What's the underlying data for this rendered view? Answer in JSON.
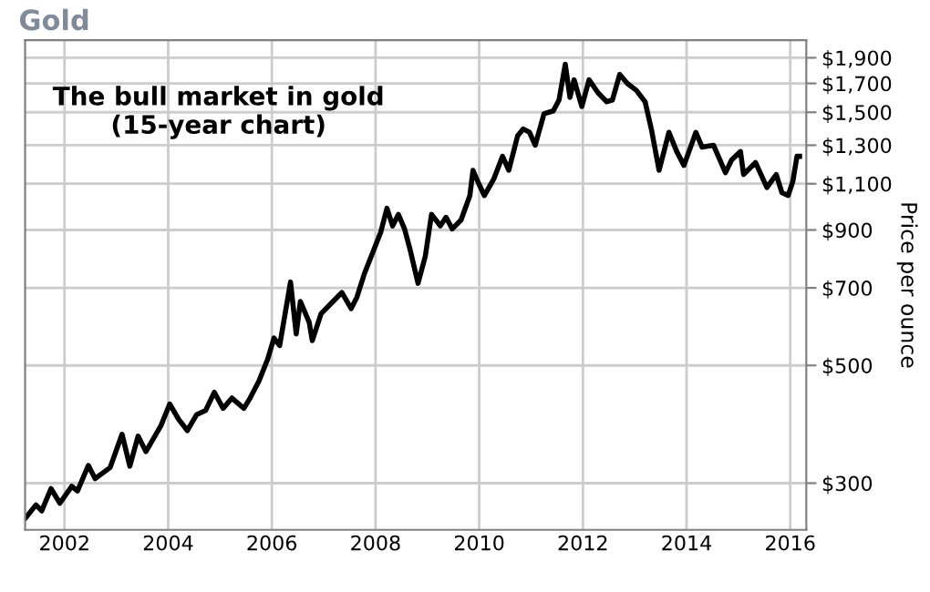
{
  "chart_data": {
    "type": "line",
    "title": "Gold",
    "ylabel": "Price per ounce",
    "annotations": [
      "The bull market in gold\n(15-year chart)"
    ],
    "x": [
      2001.25,
      2001.45,
      2001.56,
      2001.74,
      2001.91,
      2002.14,
      2002.25,
      2002.46,
      2002.59,
      2002.88,
      2003.11,
      2003.26,
      2003.42,
      2003.57,
      2003.86,
      2004.03,
      2004.2,
      2004.37,
      2004.55,
      2004.72,
      2004.89,
      2005.06,
      2005.23,
      2005.46,
      2005.58,
      2005.75,
      2005.92,
      2006.04,
      2006.15,
      2006.36,
      2006.47,
      2006.55,
      2006.72,
      2006.78,
      2006.95,
      2007.18,
      2007.35,
      2007.53,
      2007.64,
      2007.78,
      2008.1,
      2008.22,
      2008.33,
      2008.44,
      2008.56,
      2008.67,
      2008.82,
      2008.96,
      2009.08,
      2009.25,
      2009.36,
      2009.48,
      2009.65,
      2009.82,
      2009.88,
      2009.99,
      2010.1,
      2010.28,
      2010.45,
      2010.57,
      2010.74,
      2010.85,
      2010.97,
      2011.08,
      2011.25,
      2011.43,
      2011.54,
      2011.66,
      2011.75,
      2011.83,
      2011.98,
      2012.12,
      2012.29,
      2012.46,
      2012.57,
      2012.71,
      2012.86,
      2013.03,
      2013.2,
      2013.32,
      2013.47,
      2013.66,
      2013.81,
      2013.95,
      2014.18,
      2014.3,
      2014.52,
      2014.75,
      2014.87,
      2015.04,
      2015.1,
      2015.33,
      2015.55,
      2015.73,
      2015.84,
      2015.96,
      2016.05,
      2016.13,
      2016.18
    ],
    "series": [
      {
        "color": "#000000",
        "values": [
          258,
          273,
          266,
          293,
          275,
          296,
          290,
          324,
          306,
          321,
          371,
          323,
          368,
          344,
          385,
          423,
          396,
          377,
          404,
          411,
          445,
          415,
          434,
          415,
          434,
          467,
          514,
          563,
          545,
          718,
          573,
          660,
          603,
          557,
          626,
          660,
          686,
          640,
          672,
          742,
          891,
          989,
          916,
          963,
          904,
          824,
          714,
          803,
          963,
          916,
          951,
          904,
          940,
          1045,
          1166,
          1101,
          1045,
          1122,
          1239,
          1166,
          1353,
          1395,
          1375,
          1300,
          1490,
          1509,
          1582,
          1848,
          1600,
          1727,
          1538,
          1727,
          1633,
          1570,
          1582,
          1767,
          1699,
          1650,
          1570,
          1395,
          1166,
          1375,
          1265,
          1191,
          1375,
          1289,
          1300,
          1154,
          1220,
          1265,
          1145,
          1206,
          1082,
          1145,
          1058,
          1045,
          1111,
          1239,
          1239
        ]
      }
    ],
    "log": "y",
    "xlim": [
      2001.24,
      2016.31
    ],
    "ylim": [
      245,
      2050
    ],
    "xticks": [
      2002,
      2004,
      2006,
      2008,
      2010,
      2012,
      2014,
      2016
    ],
    "yticks": [
      {
        "value": 300,
        "label": "$300"
      },
      {
        "value": 500,
        "label": "$500"
      },
      {
        "value": 700,
        "label": "$700"
      },
      {
        "value": 900,
        "label": "$900"
      },
      {
        "value": 1100,
        "label": "$1,100"
      },
      {
        "value": 1300,
        "label": "$1,300"
      },
      {
        "value": 1500,
        "label": "$1,500"
      },
      {
        "value": 1700,
        "label": "$1,700"
      },
      {
        "value": 1900,
        "label": "$1,900"
      }
    ],
    "grid": true,
    "legend": false,
    "marker": "none",
    "line_style": "solid"
  }
}
